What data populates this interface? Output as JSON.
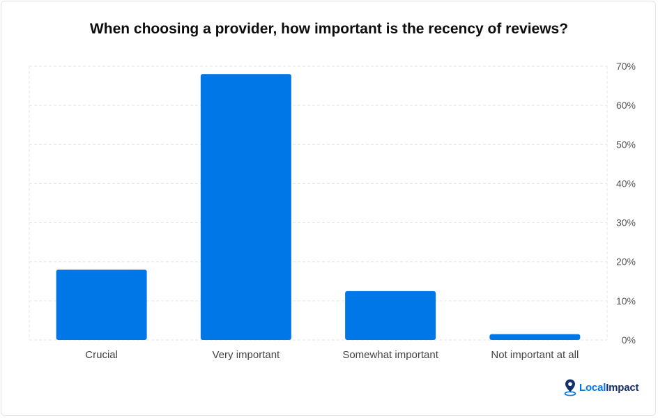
{
  "chart_data": {
    "type": "bar",
    "title": "When choosing a provider, how important is the recency of reviews?",
    "categories": [
      "Crucial",
      "Very important",
      "Somewhat important",
      "Not important at all"
    ],
    "values": [
      18,
      68,
      12.5,
      1.5
    ],
    "ylim": [
      0,
      70
    ],
    "yticks": [
      0,
      10,
      20,
      30,
      40,
      50,
      60,
      70
    ],
    "ytick_suffix": "%",
    "y_axis_side": "right",
    "grid": true,
    "bar_color": "#0077e6",
    "grid_color": "#e6e6e6",
    "xlabel": "",
    "ylabel": ""
  },
  "brand": {
    "local": "Local",
    "impact": "Impact",
    "icon": "map-pin-icon",
    "local_color": "#0077e6",
    "impact_color": "#14306b"
  }
}
